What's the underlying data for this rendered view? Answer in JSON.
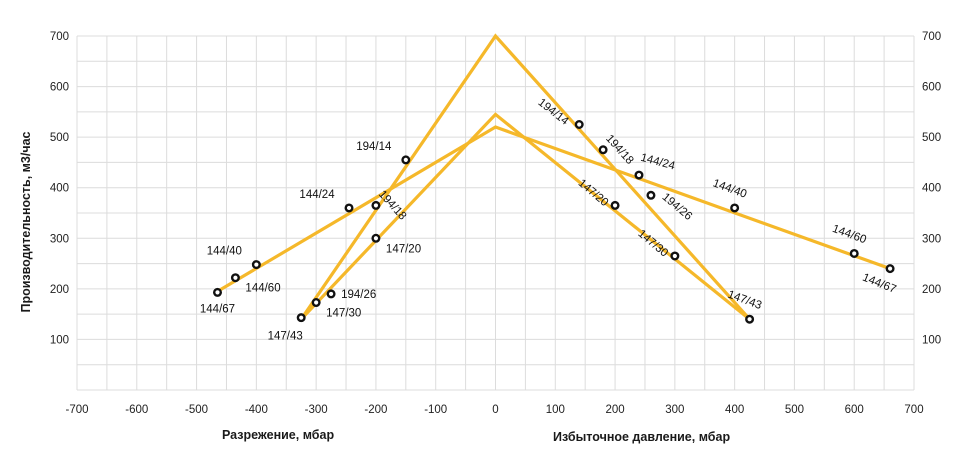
{
  "chart_data": {
    "type": "line",
    "ylabel": "Производительность, м3/час",
    "xlabel_left": "Разрежение, мбар",
    "xlabel_right": "Избыточное давление, мбар",
    "xlim": [
      -700,
      700
    ],
    "ylim": [
      0,
      700
    ],
    "x_ticks": [
      {
        "value": -700,
        "label": "-700"
      },
      {
        "value": -600,
        "label": "-600"
      },
      {
        "value": -500,
        "label": "-500"
      },
      {
        "value": -400,
        "label": "-400"
      },
      {
        "value": -300,
        "label": "-300"
      },
      {
        "value": -200,
        "label": "-200"
      },
      {
        "value": -100,
        "label": "-100"
      },
      {
        "value": 0,
        "label": "0"
      },
      {
        "value": 100,
        "label": "100"
      },
      {
        "value": 200,
        "label": "200"
      },
      {
        "value": 300,
        "label": "300"
      },
      {
        "value": 400,
        "label": "400"
      },
      {
        "value": 500,
        "label": "500"
      },
      {
        "value": 600,
        "label": "600"
      },
      {
        "value": 700,
        "label": "700"
      }
    ],
    "y_ticks": [
      {
        "value": 100,
        "label": "100"
      },
      {
        "value": 200,
        "label": "200"
      },
      {
        "value": 300,
        "label": "300"
      },
      {
        "value": 400,
        "label": "400"
      },
      {
        "value": 500,
        "label": "500"
      },
      {
        "value": 600,
        "label": "600"
      },
      {
        "value": 700,
        "label": "700"
      }
    ],
    "colors": {
      "line": "#f5b82a",
      "grid": "#dcdcdc",
      "point_fill": "#ffffff",
      "point_stroke": "#111111"
    },
    "series": [
      {
        "name": "194",
        "x": [
          -325,
          0,
          425
        ],
        "y": [
          140,
          700,
          140
        ],
        "points": [
          {
            "x": -150,
            "y": 455,
            "label": "194/14",
            "pos": "above-left"
          },
          {
            "x": -200,
            "y": 365,
            "label": "194/18",
            "pos": "rot-right"
          },
          {
            "x": -275,
            "y": 190,
            "label": "194/26",
            "pos": "right"
          },
          {
            "x": 140,
            "y": 525,
            "label": "194/14",
            "pos": "rot-left"
          },
          {
            "x": 180,
            "y": 475,
            "label": "194/18",
            "pos": "rot-right"
          },
          {
            "x": 260,
            "y": 385,
            "label": "194/26",
            "pos": "rot-right-below"
          }
        ]
      },
      {
        "name": "147",
        "x": [
          -325,
          0,
          425
        ],
        "y": [
          140,
          545,
          140
        ],
        "points": [
          {
            "x": -200,
            "y": 300,
            "label": "147/20",
            "pos": "right-below"
          },
          {
            "x": -300,
            "y": 173,
            "label": "147/30",
            "pos": "right-below"
          },
          {
            "x": -325,
            "y": 143,
            "label": "147/43",
            "pos": "below-left"
          },
          {
            "x": 200,
            "y": 365,
            "label": "147/20",
            "pos": "rot-left-below"
          },
          {
            "x": 300,
            "y": 265,
            "label": "147/30",
            "pos": "rot-left-below"
          },
          {
            "x": 425,
            "y": 140,
            "label": "147/43",
            "pos": "rot-above"
          }
        ]
      },
      {
        "name": "144",
        "x": [
          -465,
          0,
          660
        ],
        "y": [
          195,
          520,
          240
        ],
        "points": [
          {
            "x": -245,
            "y": 360,
            "label": "144/24",
            "pos": "above-left"
          },
          {
            "x": -400,
            "y": 248,
            "label": "144/40",
            "pos": "above-left"
          },
          {
            "x": -435,
            "y": 222,
            "label": "144/60",
            "pos": "right-below"
          },
          {
            "x": -465,
            "y": 193,
            "label": "144/67",
            "pos": "below"
          },
          {
            "x": 240,
            "y": 425,
            "label": "144/24",
            "pos": "rot-right-up"
          },
          {
            "x": 400,
            "y": 360,
            "label": "144/40",
            "pos": "rot-above"
          },
          {
            "x": 600,
            "y": 270,
            "label": "144/60",
            "pos": "rot-above"
          },
          {
            "x": 660,
            "y": 240,
            "label": "144/67",
            "pos": "rot-below"
          }
        ]
      }
    ]
  }
}
